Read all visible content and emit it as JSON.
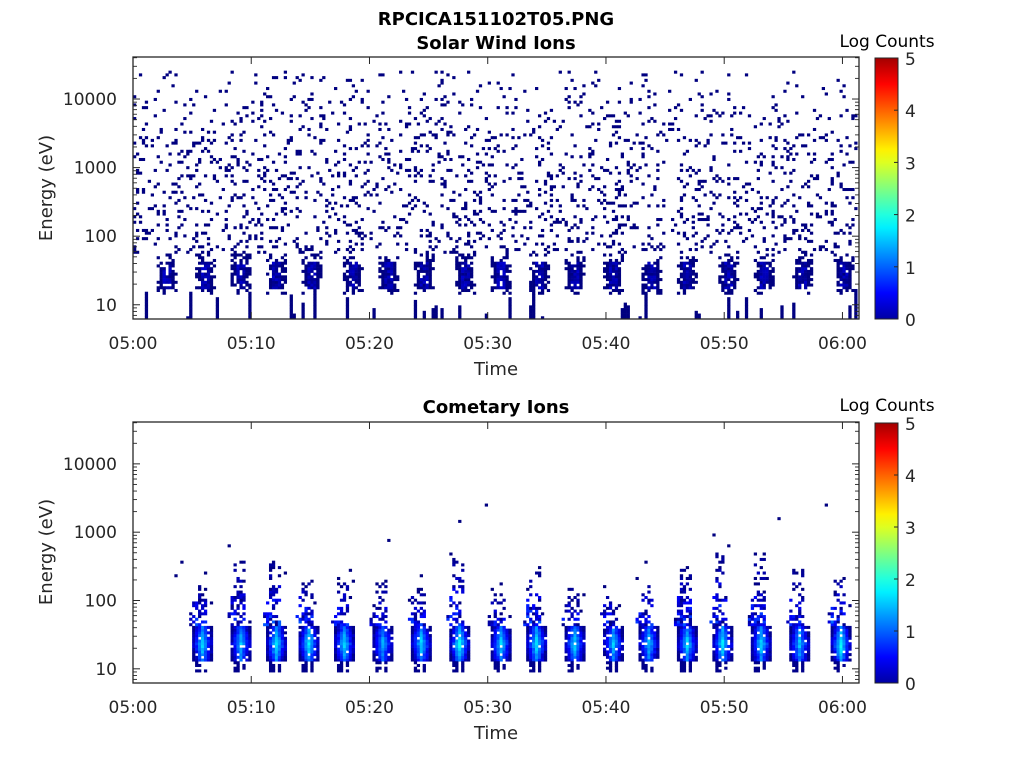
{
  "figure_title": "RPCICA151102T05.PNG",
  "chart_data": [
    {
      "type": "heatmap",
      "title": "Solar Wind Ions",
      "xlabel": "Time",
      "ylabel": "Energy (eV)",
      "x_tick_labels": [
        "05:00",
        "05:10",
        "05:20",
        "05:30",
        "05:40",
        "05:50",
        "06:00"
      ],
      "x_tick_minutes": [
        0,
        10,
        20,
        30,
        40,
        50,
        60
      ],
      "xlim_minutes": [
        0,
        61.4
      ],
      "y_scale": "log",
      "y_tick_labels": [
        "10",
        "100",
        "1000",
        "10000"
      ],
      "y_tick_values": [
        10,
        100,
        1000,
        10000
      ],
      "ylim": [
        6.2,
        41000
      ],
      "colorbar": {
        "label": "Log Counts",
        "ticks": [
          "0",
          "1",
          "2",
          "3",
          "4",
          "5"
        ],
        "range": [
          0,
          5
        ],
        "colormap": "jet"
      },
      "burst_centers_minutes": [
        2.7,
        6.0,
        8.9,
        11.9,
        15.1,
        18.5,
        21.6,
        24.6,
        27.9,
        31.0,
        34.3,
        37.2,
        40.5,
        43.8,
        46.8,
        50.2,
        53.2,
        56.4,
        60.0
      ],
      "burst_energy_range_eV": [
        18,
        42
      ],
      "burst_log_counts": [
        0.0,
        0.4
      ],
      "background": {
        "energy_range_eV": [
          60,
          25000
        ],
        "density": 0.14,
        "log_counts": 0.0
      },
      "low_energy_streaks_eV": [
        6.2,
        16
      ],
      "seed": 7
    },
    {
      "type": "heatmap",
      "title": "Cometary Ions",
      "xlabel": "Time",
      "ylabel": "Energy (eV)",
      "x_tick_labels": [
        "05:00",
        "05:10",
        "05:20",
        "05:30",
        "05:40",
        "05:50",
        "06:00"
      ],
      "x_tick_minutes": [
        0,
        10,
        20,
        30,
        40,
        50,
        60
      ],
      "xlim_minutes": [
        0,
        61.4
      ],
      "y_scale": "log",
      "y_tick_labels": [
        "10",
        "100",
        "1000",
        "10000"
      ],
      "y_tick_values": [
        10,
        100,
        1000,
        10000
      ],
      "ylim": [
        6.2,
        41000
      ],
      "colorbar": {
        "label": "Log Counts",
        "ticks": [
          "0",
          "1",
          "2",
          "3",
          "4",
          "5"
        ],
        "range": [
          0,
          5
        ],
        "colormap": "jet"
      },
      "burst_centers_minutes": [
        5.8,
        8.9,
        11.9,
        14.8,
        17.8,
        20.9,
        24.3,
        27.6,
        31.1,
        34.0,
        37.2,
        40.4,
        43.5,
        46.8,
        49.8,
        53.0,
        56.3,
        59.8
      ],
      "burst_peak_log_counts": [
        1.7,
        1.6,
        1.8,
        1.8,
        1.7,
        1.5,
        1.7,
        1.9,
        1.7,
        1.8,
        1.7,
        1.6,
        1.6,
        1.7,
        1.8,
        1.7,
        1.6,
        1.9
      ],
      "burst_core_energy_range_eV": [
        14,
        42
      ],
      "burst_tail_max_eV": [
        160,
        400,
        380,
        200,
        210,
        180,
        150,
        400,
        120,
        260,
        140,
        150,
        250,
        300,
        550,
        480,
        280,
        250
      ],
      "isolated_points": [
        {
          "minute": 3.5,
          "energy_eV": 230
        },
        {
          "minute": 4.0,
          "energy_eV": 380
        },
        {
          "minute": 21.5,
          "energy_eV": 770
        },
        {
          "minute": 27.5,
          "energy_eV": 1450
        },
        {
          "minute": 29.7,
          "energy_eV": 2550
        },
        {
          "minute": 49.1,
          "energy_eV": 880
        },
        {
          "minute": 54.5,
          "energy_eV": 1550
        },
        {
          "minute": 58.6,
          "energy_eV": 2400
        }
      ],
      "seed": 11
    }
  ]
}
